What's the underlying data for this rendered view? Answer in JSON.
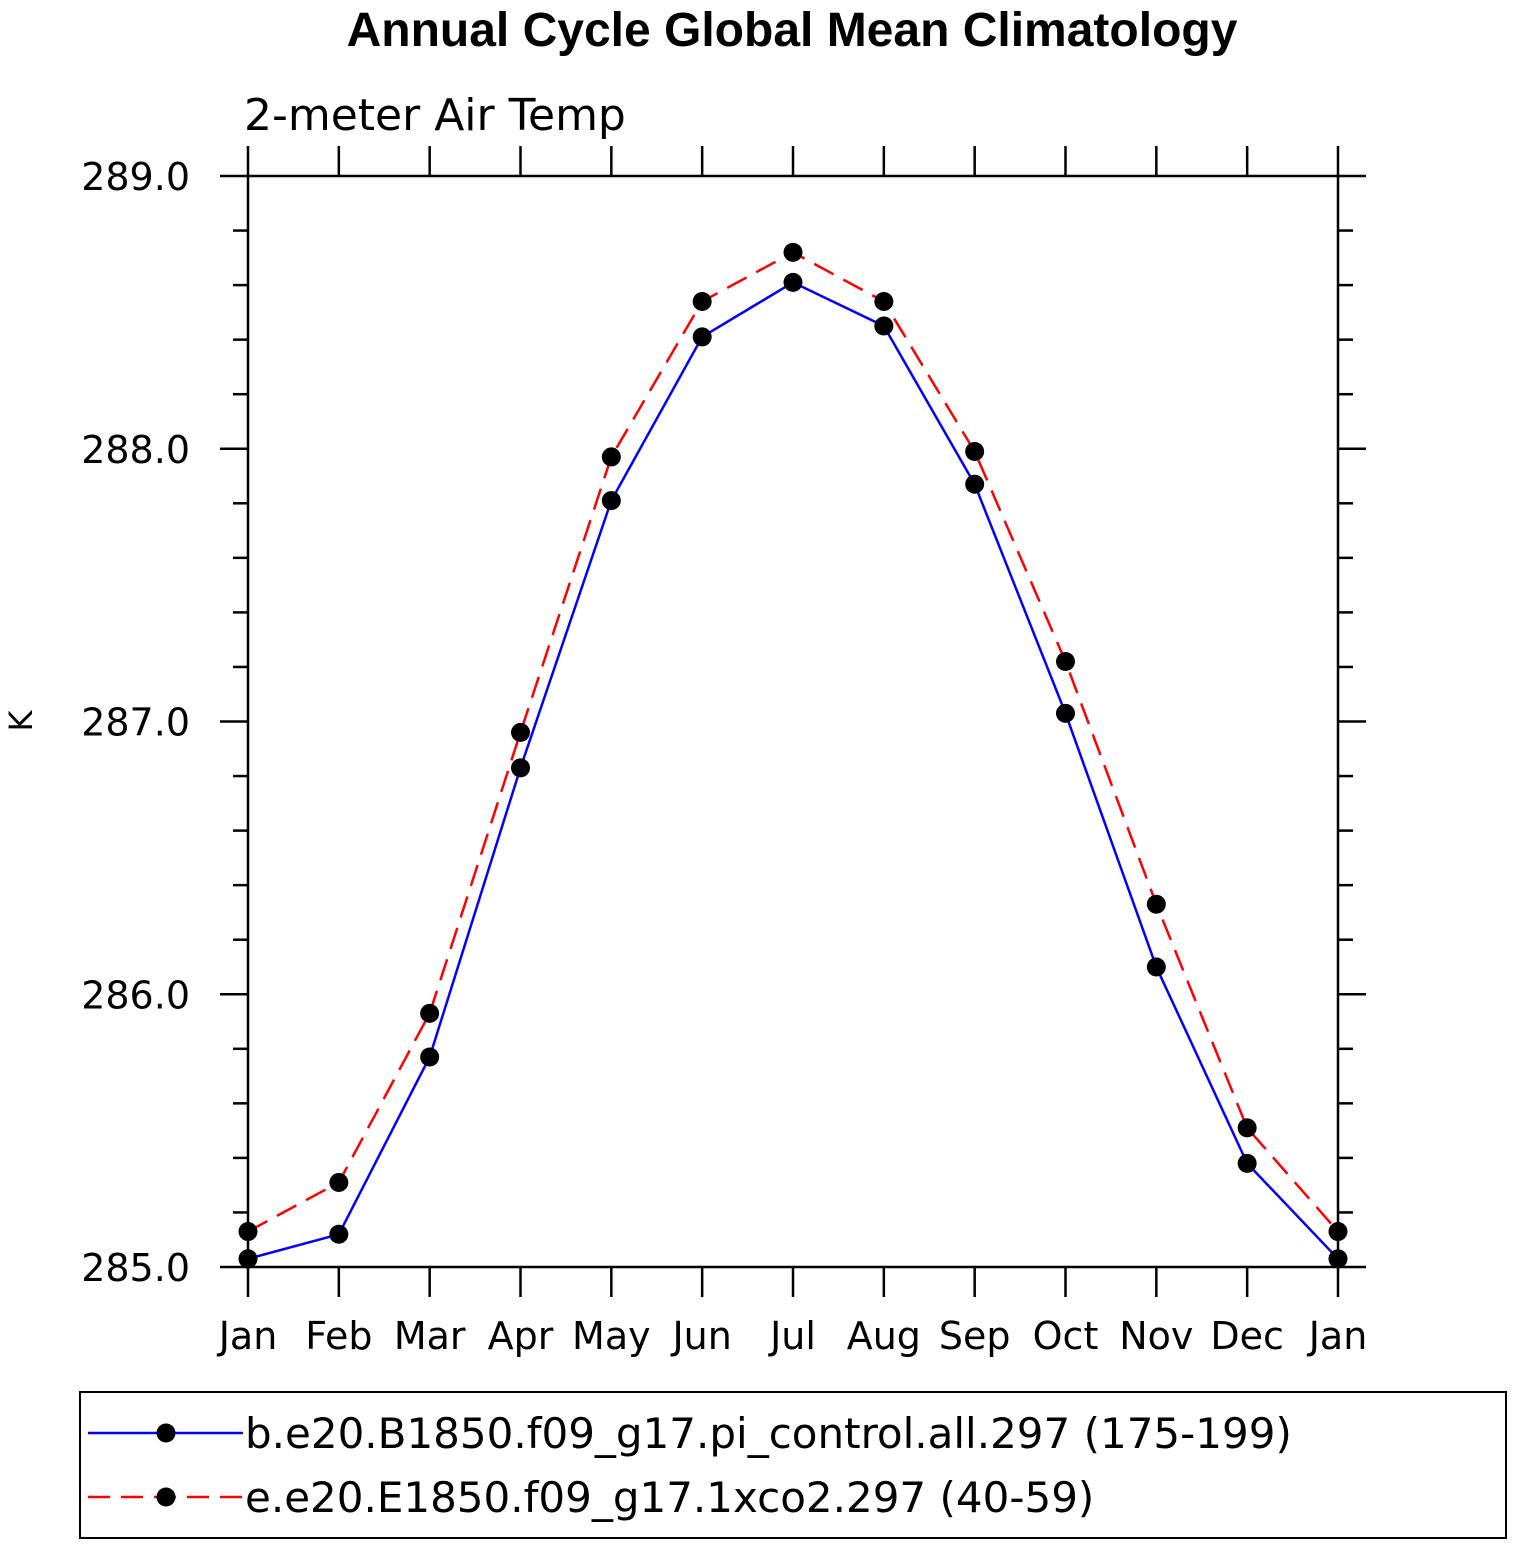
{
  "chart_data": {
    "type": "line",
    "title": "Annual Cycle Global Mean Climatology",
    "subtitle": "2-meter Air Temp",
    "xlabel": "",
    "ylabel": "K",
    "categories": [
      "Jan",
      "Feb",
      "Mar",
      "Apr",
      "May",
      "Jun",
      "Jul",
      "Aug",
      "Sep",
      "Oct",
      "Nov",
      "Dec",
      "Jan"
    ],
    "ylim": [
      285.0,
      289.0
    ],
    "yticks": [
      "285.0",
      "286.0",
      "287.0",
      "288.0",
      "289.0"
    ],
    "grid": false,
    "legend_position": "bottom",
    "series": [
      {
        "name": "b.e20.B1850.f09_g17.pi_control.all.297 (175-199)",
        "color": "#0000ff",
        "style": "solid",
        "marker": "filled-circle",
        "values": [
          285.03,
          285.12,
          285.77,
          286.83,
          287.81,
          288.41,
          288.61,
          288.45,
          287.87,
          287.03,
          286.1,
          285.38,
          285.03
        ]
      },
      {
        "name": "e.e20.E1850.f09_g17.1xco2.297 (40-59)",
        "color": "#ff0000",
        "style": "dashed",
        "marker": "filled-circle",
        "values": [
          285.13,
          285.31,
          285.93,
          286.96,
          287.97,
          288.54,
          288.72,
          288.54,
          287.99,
          287.22,
          286.33,
          285.51,
          285.13
        ]
      }
    ]
  }
}
